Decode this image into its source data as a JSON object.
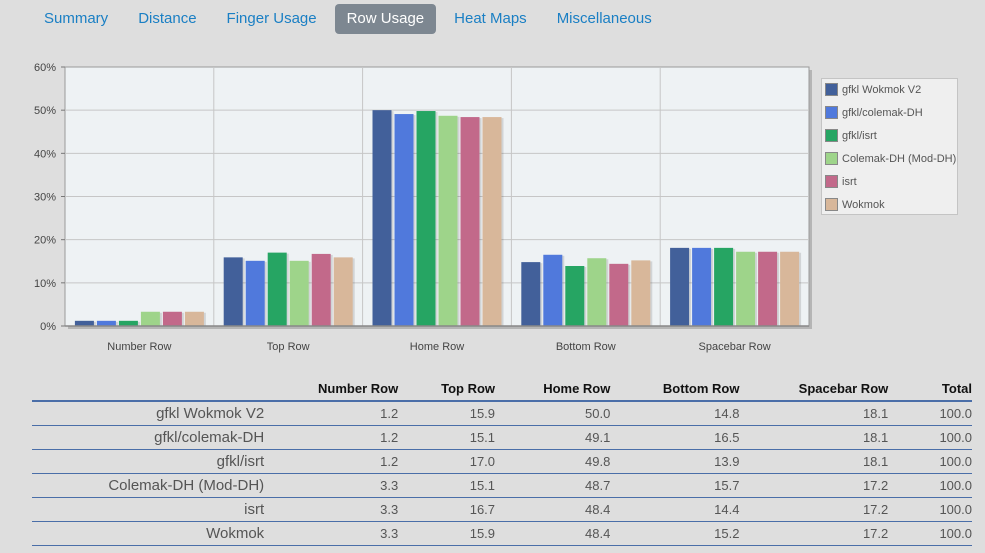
{
  "tabs": [
    {
      "label": "Summary",
      "active": false
    },
    {
      "label": "Distance",
      "active": false
    },
    {
      "label": "Finger Usage",
      "active": false
    },
    {
      "label": "Row Usage",
      "active": true
    },
    {
      "label": "Heat Maps",
      "active": false
    },
    {
      "label": "Miscellaneous",
      "active": false
    }
  ],
  "chart_data": {
    "type": "bar",
    "categories": [
      "Number Row",
      "Top Row",
      "Home Row",
      "Bottom Row",
      "Spacebar Row"
    ],
    "series": [
      {
        "name": "gfkl Wokmok V2",
        "color": "#42609a",
        "values": [
          1.2,
          15.9,
          50.0,
          14.8,
          18.1
        ]
      },
      {
        "name": "gfkl/colemak-DH",
        "color": "#5079dc",
        "values": [
          1.2,
          15.1,
          49.1,
          16.5,
          18.1
        ]
      },
      {
        "name": "gfkl/isrt",
        "color": "#26a563",
        "values": [
          1.2,
          17.0,
          49.8,
          13.9,
          18.1
        ]
      },
      {
        "name": "Colemak-DH (Mod-DH)",
        "color": "#9ed48a",
        "values": [
          3.3,
          15.1,
          48.7,
          15.7,
          17.2
        ]
      },
      {
        "name": "isrt",
        "color": "#c2698a",
        "values": [
          3.3,
          16.7,
          48.4,
          14.4,
          17.2
        ]
      },
      {
        "name": "Wokmok",
        "color": "#d8b79a",
        "values": [
          3.3,
          15.9,
          48.4,
          15.2,
          17.2
        ]
      }
    ],
    "yticks": [
      "0%",
      "10%",
      "20%",
      "30%",
      "40%",
      "50%",
      "60%"
    ],
    "ylim": [
      0,
      60
    ],
    "grid": true,
    "legend_position": "right"
  },
  "table": {
    "headers": [
      "",
      "Number Row",
      "Top Row",
      "Home Row",
      "Bottom Row",
      "Spacebar Row",
      "Total"
    ],
    "rows": [
      [
        "gfkl Wokmok V2",
        "1.2",
        "15.9",
        "50.0",
        "14.8",
        "18.1",
        "100.0"
      ],
      [
        "gfkl/colemak-DH",
        "1.2",
        "15.1",
        "49.1",
        "16.5",
        "18.1",
        "100.0"
      ],
      [
        "gfkl/isrt",
        "1.2",
        "17.0",
        "49.8",
        "13.9",
        "18.1",
        "100.0"
      ],
      [
        "Colemak-DH (Mod-DH)",
        "3.3",
        "15.1",
        "48.7",
        "15.7",
        "17.2",
        "100.0"
      ],
      [
        "isrt",
        "3.3",
        "16.7",
        "48.4",
        "14.4",
        "17.2",
        "100.0"
      ],
      [
        "Wokmok",
        "3.3",
        "15.9",
        "48.4",
        "15.2",
        "17.2",
        "100.0"
      ]
    ]
  }
}
